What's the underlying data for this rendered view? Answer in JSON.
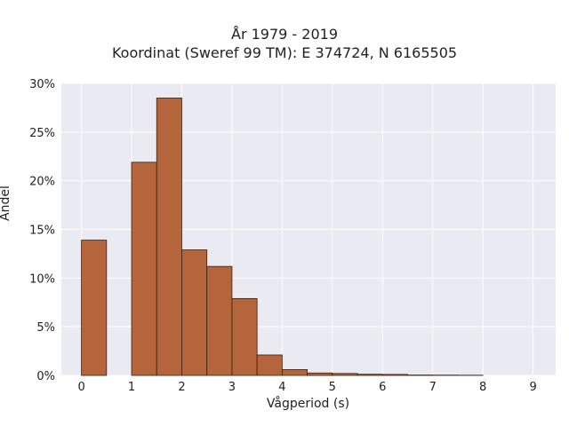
{
  "chart_data": {
    "type": "bar",
    "title": "År 1979 - 2019",
    "subtitle": "Koordinat (Sweref 99 TM): E 374724, N 6165505",
    "xlabel": "Vågperiod (s)",
    "ylabel": "Andel",
    "xlim": [
      -0.4,
      9.45
    ],
    "ylim": [
      0,
      0.3
    ],
    "xticks": [
      0,
      1,
      2,
      3,
      4,
      5,
      6,
      7,
      8,
      9
    ],
    "xtick_labels": [
      "0",
      "1",
      "2",
      "3",
      "4",
      "5",
      "6",
      "7",
      "8",
      "9"
    ],
    "yticks": [
      0,
      0.05,
      0.1,
      0.15,
      0.2,
      0.25,
      0.3
    ],
    "ytick_labels": [
      "0%",
      "5%",
      "10%",
      "15%",
      "20%",
      "25%",
      "30%"
    ],
    "bin_width": 0.5,
    "bins": [
      {
        "start": 0.0,
        "value": 0.139
      },
      {
        "start": 1.0,
        "value": 0.219
      },
      {
        "start": 1.5,
        "value": 0.285
      },
      {
        "start": 2.0,
        "value": 0.129
      },
      {
        "start": 2.5,
        "value": 0.112
      },
      {
        "start": 3.0,
        "value": 0.079
      },
      {
        "start": 3.5,
        "value": 0.021
      },
      {
        "start": 4.0,
        "value": 0.006
      },
      {
        "start": 4.5,
        "value": 0.0025
      },
      {
        "start": 5.0,
        "value": 0.002
      },
      {
        "start": 5.5,
        "value": 0.0012
      },
      {
        "start": 6.0,
        "value": 0.001
      },
      {
        "start": 6.5,
        "value": 0.0004
      },
      {
        "start": 7.0,
        "value": 0.0003
      },
      {
        "start": 7.5,
        "value": 0.0002
      }
    ],
    "grid": true,
    "colors": {
      "bar_fill": "#b5653b",
      "bar_edge": "#3a1f10",
      "plot_background": "#eaeaf2",
      "grid": "#ffffff"
    }
  }
}
